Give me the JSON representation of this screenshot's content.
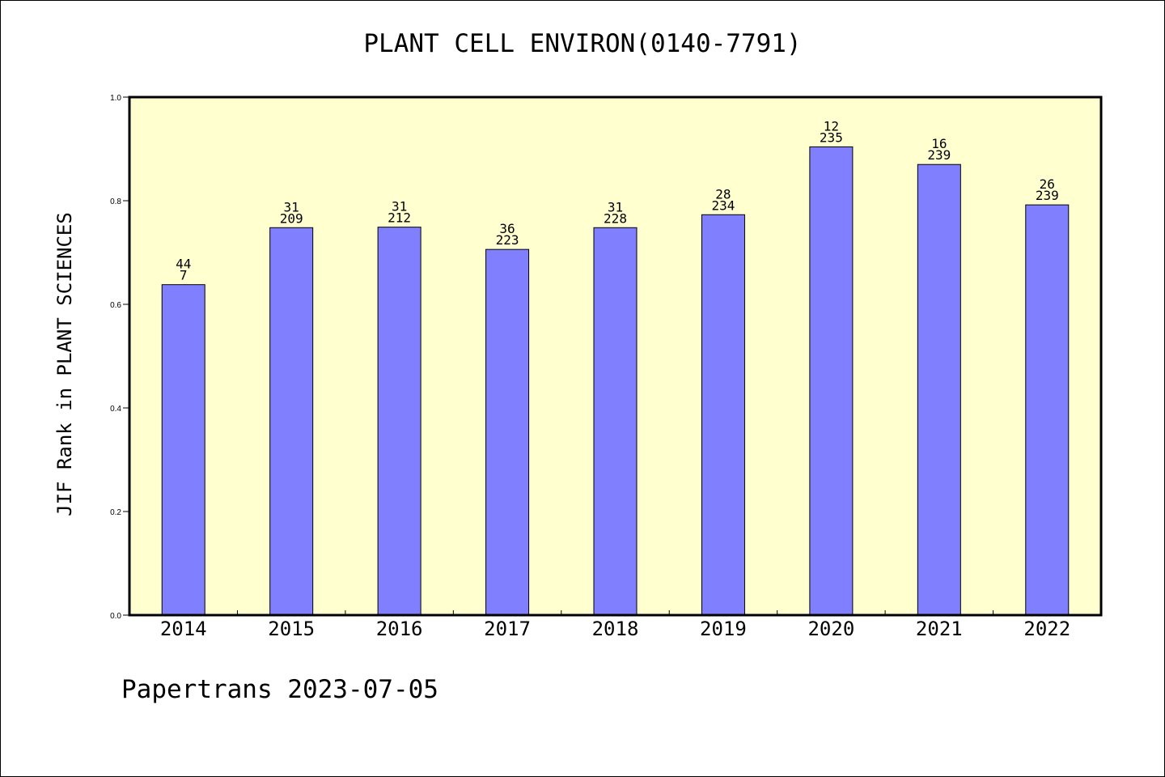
{
  "chart_data": {
    "type": "bar",
    "title": "PLANT CELL ENVIRON(0140-7791)",
    "xlabel": "",
    "ylabel": "JIF Rank in PLANT SCIENCES",
    "ylim": [
      0,
      1.0
    ],
    "yticks": [
      "0.0",
      "0.2",
      "0.4",
      "0.6",
      "0.8",
      "1.0"
    ],
    "categories": [
      "2014",
      "2015",
      "2016",
      "2017",
      "2018",
      "2019",
      "2020",
      "2021",
      "2022"
    ],
    "values": [
      0.638,
      0.748,
      0.749,
      0.706,
      0.748,
      0.773,
      0.904,
      0.87,
      0.792
    ],
    "labels_top": [
      "44",
      "31",
      "31",
      "36",
      "31",
      "28",
      "12",
      "16",
      "26"
    ],
    "labels_bottom": [
      "7",
      "209",
      "212",
      "223",
      "228",
      "234",
      "235",
      "239",
      "239"
    ],
    "grid": false,
    "colors": {
      "bar": "#8080ff",
      "plot_bg": "#ffffd0",
      "axis": "#000000"
    }
  },
  "footer": "Papertrans 2023-07-05"
}
